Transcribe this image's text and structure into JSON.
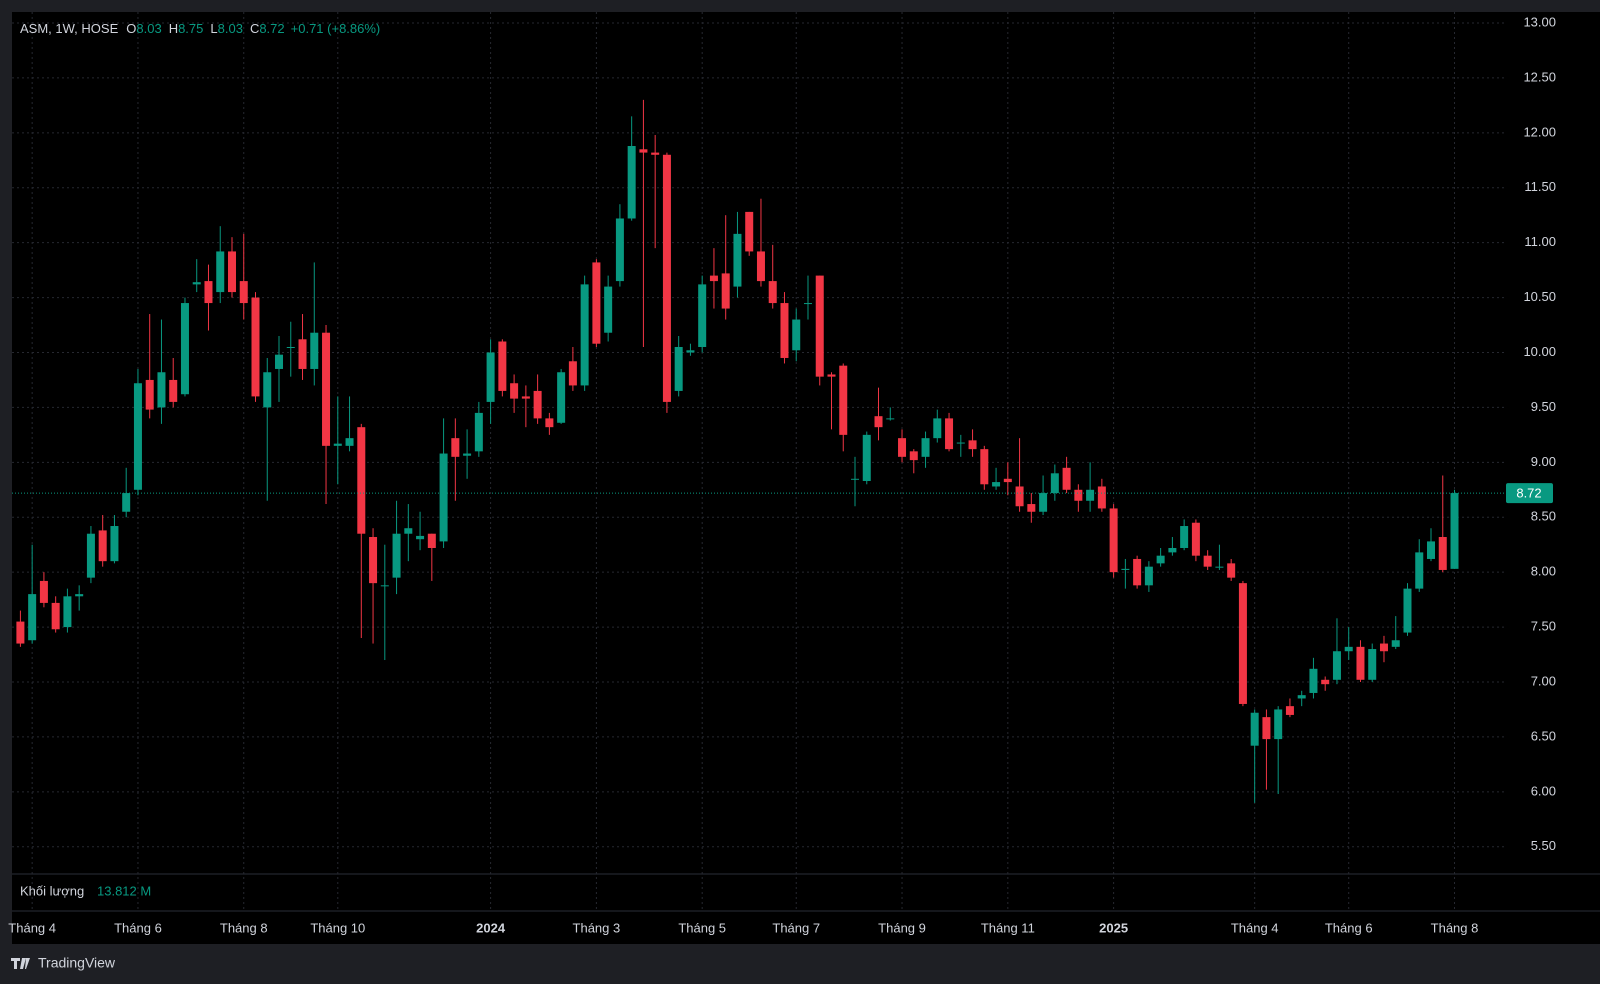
{
  "chart_data": {
    "type": "candlestick",
    "symbol": "ASM, 1W, HOSE",
    "ohlc_labels": [
      "O",
      "H",
      "L",
      "C"
    ],
    "change": "+0.71 (+8.86%)",
    "volume_label": "Khối lượng",
    "volume_value": "13.812 M",
    "brand": "TradingView",
    "up_color": "#089981",
    "down_color": "#f23645",
    "grid": true,
    "categories": [
      null,
      "Tháng 4",
      null,
      null,
      null,
      null,
      null,
      null,
      null,
      null,
      "Tháng 6",
      null,
      null,
      null,
      null,
      null,
      null,
      null,
      null,
      "Tháng 8",
      null,
      null,
      null,
      null,
      null,
      null,
      null,
      "Tháng 10",
      null,
      null,
      null,
      null,
      null,
      null,
      null,
      null,
      null,
      null,
      null,
      null,
      "2024",
      null,
      null,
      null,
      null,
      null,
      null,
      null,
      null,
      "Tháng 3",
      null,
      null,
      null,
      null,
      null,
      null,
      null,
      null,
      "Tháng 5",
      null,
      null,
      null,
      null,
      null,
      null,
      null,
      "Tháng 7",
      null,
      null,
      null,
      null,
      null,
      null,
      null,
      null,
      "Tháng 9",
      null,
      null,
      null,
      null,
      null,
      null,
      null,
      null,
      "Tháng 11",
      null,
      null,
      null,
      null,
      null,
      null,
      null,
      null,
      "2025",
      null,
      null,
      null,
      null,
      null,
      null,
      null,
      null,
      null,
      null,
      null,
      "Tháng 4",
      null,
      null,
      null,
      null,
      null,
      null,
      null,
      "Tháng 6",
      null,
      null,
      null,
      null,
      null,
      null,
      null,
      null,
      "Tháng 8"
    ],
    "open": [
      7.55,
      7.38,
      7.92,
      7.72,
      7.5,
      7.78,
      7.95,
      8.38,
      8.1,
      8.55,
      8.75,
      9.75,
      9.5,
      9.75,
      9.62,
      10.62,
      10.65,
      10.55,
      10.92,
      10.65,
      10.5,
      9.5,
      9.85,
      10.05,
      10.12,
      9.85,
      10.18,
      9.15,
      9.15,
      9.32,
      8.32,
      7.88,
      7.95,
      8.35,
      8.3,
      8.35,
      8.28,
      9.22,
      9.06,
      9.1,
      9.55,
      10.1,
      9.72,
      9.6,
      9.65,
      9.4,
      9.36,
      9.92,
      9.7,
      10.82,
      10.18,
      10.65,
      11.22,
      11.85,
      11.82,
      11.8,
      9.65,
      10.0,
      10.05,
      10.7,
      10.72,
      10.6,
      11.28,
      10.92,
      10.65,
      10.45,
      10.02,
      10.45,
      10.7,
      9.8,
      9.88,
      8.85,
      8.83,
      9.42,
      9.4,
      9.22,
      9.1,
      9.05,
      9.22,
      9.4,
      9.18,
      9.2,
      9.12,
      8.78,
      8.85,
      8.78,
      8.62,
      8.55,
      8.72,
      8.95,
      8.75,
      8.65,
      8.78,
      8.58,
      8.02,
      8.12,
      7.88,
      8.08,
      8.18,
      8.22,
      8.45,
      8.15,
      8.05,
      8.08,
      7.9,
      6.42,
      6.68,
      6.48,
      6.78,
      6.85,
      6.9,
      7.02,
      7.02,
      7.28,
      7.32,
      7.02,
      7.35,
      7.32,
      7.45,
      7.85,
      8.12,
      8.32,
      8.03
    ],
    "high": [
      7.65,
      8.25,
      8.0,
      7.78,
      7.85,
      7.88,
      8.42,
      8.52,
      8.52,
      8.95,
      9.85,
      10.35,
      10.3,
      9.95,
      10.5,
      10.85,
      10.8,
      11.15,
      11.05,
      11.08,
      10.55,
      9.95,
      10.15,
      10.28,
      10.35,
      10.82,
      10.25,
      9.6,
      9.6,
      9.35,
      8.4,
      8.25,
      8.65,
      8.62,
      8.55,
      8.35,
      9.4,
      9.4,
      9.3,
      9.55,
      10.12,
      10.12,
      9.8,
      9.7,
      9.8,
      9.45,
      9.85,
      10.05,
      10.7,
      10.85,
      10.7,
      11.35,
      12.15,
      12.3,
      11.98,
      11.82,
      10.15,
      10.08,
      10.7,
      10.95,
      11.25,
      11.28,
      11.28,
      11.4,
      10.98,
      10.55,
      10.4,
      10.7,
      10.7,
      9.82,
      9.9,
      9.05,
      9.28,
      9.68,
      9.5,
      9.3,
      9.12,
      9.28,
      9.48,
      9.45,
      9.25,
      9.3,
      9.15,
      8.95,
      9.0,
      9.22,
      8.72,
      8.88,
      8.98,
      9.05,
      8.8,
      9.0,
      8.85,
      8.62,
      8.12,
      8.15,
      8.1,
      8.22,
      8.32,
      8.48,
      8.48,
      8.2,
      8.25,
      8.12,
      7.92,
      6.75,
      6.75,
      6.78,
      6.85,
      6.92,
      7.22,
      7.05,
      7.58,
      7.5,
      7.38,
      7.35,
      7.42,
      7.6,
      7.9,
      8.3,
      8.4,
      8.88,
      8.75
    ],
    "low": [
      7.32,
      7.35,
      7.68,
      7.45,
      7.45,
      7.65,
      7.9,
      8.05,
      8.08,
      8.5,
      8.7,
      9.4,
      9.35,
      9.5,
      9.6,
      10.55,
      10.2,
      10.45,
      10.5,
      10.3,
      9.55,
      8.65,
      9.55,
      9.78,
      9.75,
      9.7,
      8.62,
      8.8,
      9.1,
      7.4,
      7.35,
      7.2,
      7.8,
      8.1,
      8.2,
      7.92,
      8.22,
      8.65,
      8.85,
      9.05,
      9.35,
      9.6,
      9.45,
      9.32,
      9.35,
      9.25,
      9.35,
      9.65,
      9.65,
      10.05,
      10.1,
      10.6,
      11.2,
      10.05,
      10.95,
      9.45,
      9.6,
      9.97,
      10.0,
      10.4,
      10.3,
      10.5,
      10.88,
      10.6,
      10.4,
      9.9,
      9.92,
      10.3,
      9.7,
      9.3,
      9.1,
      8.6,
      8.8,
      9.2,
      9.38,
      9.0,
      8.9,
      8.95,
      9.18,
      9.1,
      9.05,
      9.05,
      8.75,
      8.75,
      8.7,
      8.55,
      8.45,
      8.52,
      8.65,
      8.72,
      8.55,
      8.55,
      8.55,
      7.95,
      7.85,
      7.85,
      7.82,
      8.05,
      8.15,
      8.2,
      8.1,
      8.02,
      8.02,
      7.92,
      6.78,
      5.9,
      6.02,
      5.98,
      6.68,
      6.78,
      6.85,
      6.92,
      6.98,
      7.2,
      7.0,
      7.0,
      7.18,
      7.3,
      7.42,
      7.82,
      8.1,
      8.0,
      8.03
    ],
    "close": [
      7.35,
      7.8,
      7.72,
      7.48,
      7.78,
      7.8,
      8.35,
      8.1,
      8.42,
      8.72,
      9.72,
      9.48,
      9.82,
      9.55,
      10.45,
      10.64,
      10.45,
      10.92,
      10.55,
      10.45,
      9.6,
      9.82,
      9.98,
      10.05,
      9.85,
      10.18,
      9.15,
      9.17,
      9.22,
      8.35,
      7.9,
      7.88,
      8.35,
      8.4,
      8.33,
      8.22,
      9.08,
      9.05,
      9.08,
      9.45,
      10.0,
      9.65,
      9.58,
      9.58,
      9.4,
      9.32,
      9.82,
      9.7,
      10.62,
      10.08,
      10.6,
      11.22,
      11.88,
      11.82,
      11.8,
      9.55,
      10.05,
      10.02,
      10.62,
      10.65,
      10.4,
      11.08,
      10.92,
      10.65,
      10.45,
      9.95,
      10.3,
      10.45,
      9.78,
      9.78,
      9.25,
      8.85,
      9.25,
      9.32,
      9.4,
      9.05,
      9.02,
      9.22,
      9.4,
      9.12,
      9.18,
      9.12,
      8.8,
      8.82,
      8.82,
      8.6,
      8.55,
      8.72,
      8.9,
      8.75,
      8.65,
      8.75,
      8.58,
      8.0,
      8.03,
      7.88,
      8.05,
      8.15,
      8.22,
      8.42,
      8.15,
      8.05,
      8.05,
      7.95,
      6.8,
      6.72,
      6.48,
      6.75,
      6.7,
      6.88,
      7.12,
      6.98,
      7.28,
      7.32,
      7.02,
      7.3,
      7.28,
      7.38,
      7.85,
      8.18,
      8.28,
      8.02,
      8.72
    ],
    "ylim": [
      5.27,
      13.1
    ],
    "yticks": [
      {
        "value": 5.5,
        "label": "5.50"
      },
      {
        "value": 6,
        "label": "6.00"
      },
      {
        "value": 6.5,
        "label": "6.50"
      },
      {
        "value": 7,
        "label": "7.00"
      },
      {
        "value": 7.5,
        "label": "7.50"
      },
      {
        "value": 8,
        "label": "8.00"
      },
      {
        "value": 8.5,
        "label": "8.50"
      },
      {
        "value": 9,
        "label": "9.00"
      },
      {
        "value": 9.5,
        "label": "9.50"
      },
      {
        "value": 10,
        "label": "10.00"
      },
      {
        "value": 10.5,
        "label": "10.50"
      },
      {
        "value": 11,
        "label": "11.00"
      },
      {
        "value": 11.5,
        "label": "11.50"
      },
      {
        "value": 12,
        "label": "12.00"
      },
      {
        "value": 12.5,
        "label": "12.50"
      },
      {
        "value": 13,
        "label": "13.00"
      }
    ]
  }
}
